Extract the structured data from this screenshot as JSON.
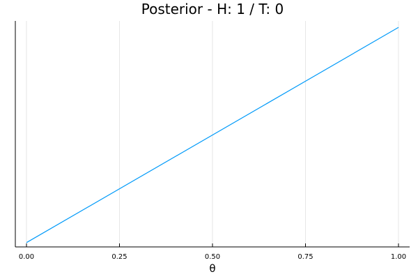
{
  "chart_data": {
    "type": "line",
    "title": "Posterior - H: 1 / T: 0",
    "xlabel": "θ",
    "ylabel": "",
    "xlim": [
      -0.03,
      1.03
    ],
    "ylim": [
      -0.02,
      1.03
    ],
    "xticks": [
      0.0,
      0.25,
      0.5,
      0.75,
      1.0
    ],
    "xtick_labels": [
      "0.00",
      "0.25",
      "0.50",
      "0.75",
      "1.00"
    ],
    "yticks": [],
    "grid": true,
    "legend": "none",
    "series": [
      {
        "color": "#009af9",
        "x": [
          0.0,
          1.0
        ],
        "y": [
          0.0,
          1.0
        ]
      }
    ]
  }
}
